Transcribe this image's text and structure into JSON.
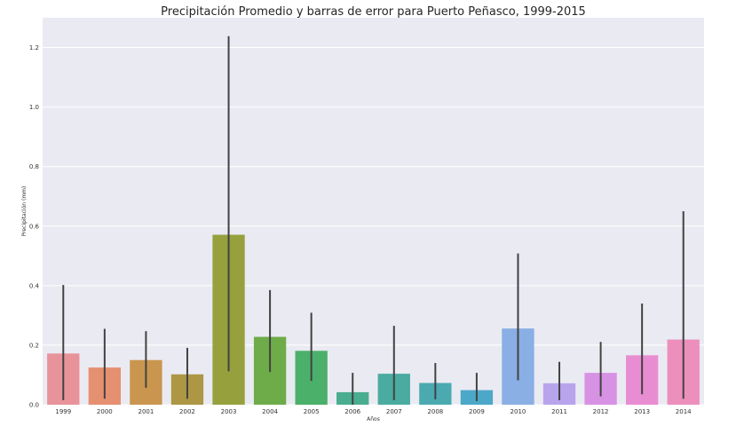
{
  "chart_data": {
    "type": "bar",
    "title": "Precipitación Promedio y barras de error para Puerto Peñasco, 1999-2015",
    "xlabel": "Años",
    "ylabel": "Precipitación (mm)",
    "ylim": [
      0,
      1.3
    ],
    "yticks": [
      "0.0",
      "0.2",
      "0.4",
      "0.6",
      "0.8",
      "1.0",
      "1.2"
    ],
    "grid": true,
    "categories": [
      "1999",
      "2000",
      "2001",
      "2002",
      "2003",
      "2004",
      "2005",
      "2006",
      "2007",
      "2008",
      "2009",
      "2010",
      "2011",
      "2012",
      "2013",
      "2014"
    ],
    "values": [
      0.172,
      0.125,
      0.15,
      0.102,
      0.571,
      0.228,
      0.181,
      0.042,
      0.104,
      0.073,
      0.049,
      0.256,
      0.072,
      0.107,
      0.166,
      0.219
    ],
    "error_low": [
      0.015,
      0.02,
      0.057,
      0.02,
      0.112,
      0.11,
      0.08,
      0.0,
      0.015,
      0.018,
      0.012,
      0.082,
      0.015,
      0.028,
      0.035,
      0.02
    ],
    "error_high": [
      0.402,
      0.255,
      0.247,
      0.191,
      1.238,
      0.385,
      0.309,
      0.107,
      0.265,
      0.14,
      0.107,
      0.508,
      0.144,
      0.211,
      0.34,
      0.65
    ],
    "colors": [
      "#e8939a",
      "#e59070",
      "#c9954f",
      "#ad9745",
      "#96a13e",
      "#6eab49",
      "#4bb06a",
      "#49ad8f",
      "#4aaba0",
      "#4aaab0",
      "#4ca8c8",
      "#89afe4",
      "#b8a4ec",
      "#d792e4",
      "#e98dd2",
      "#ec8fbd"
    ]
  }
}
